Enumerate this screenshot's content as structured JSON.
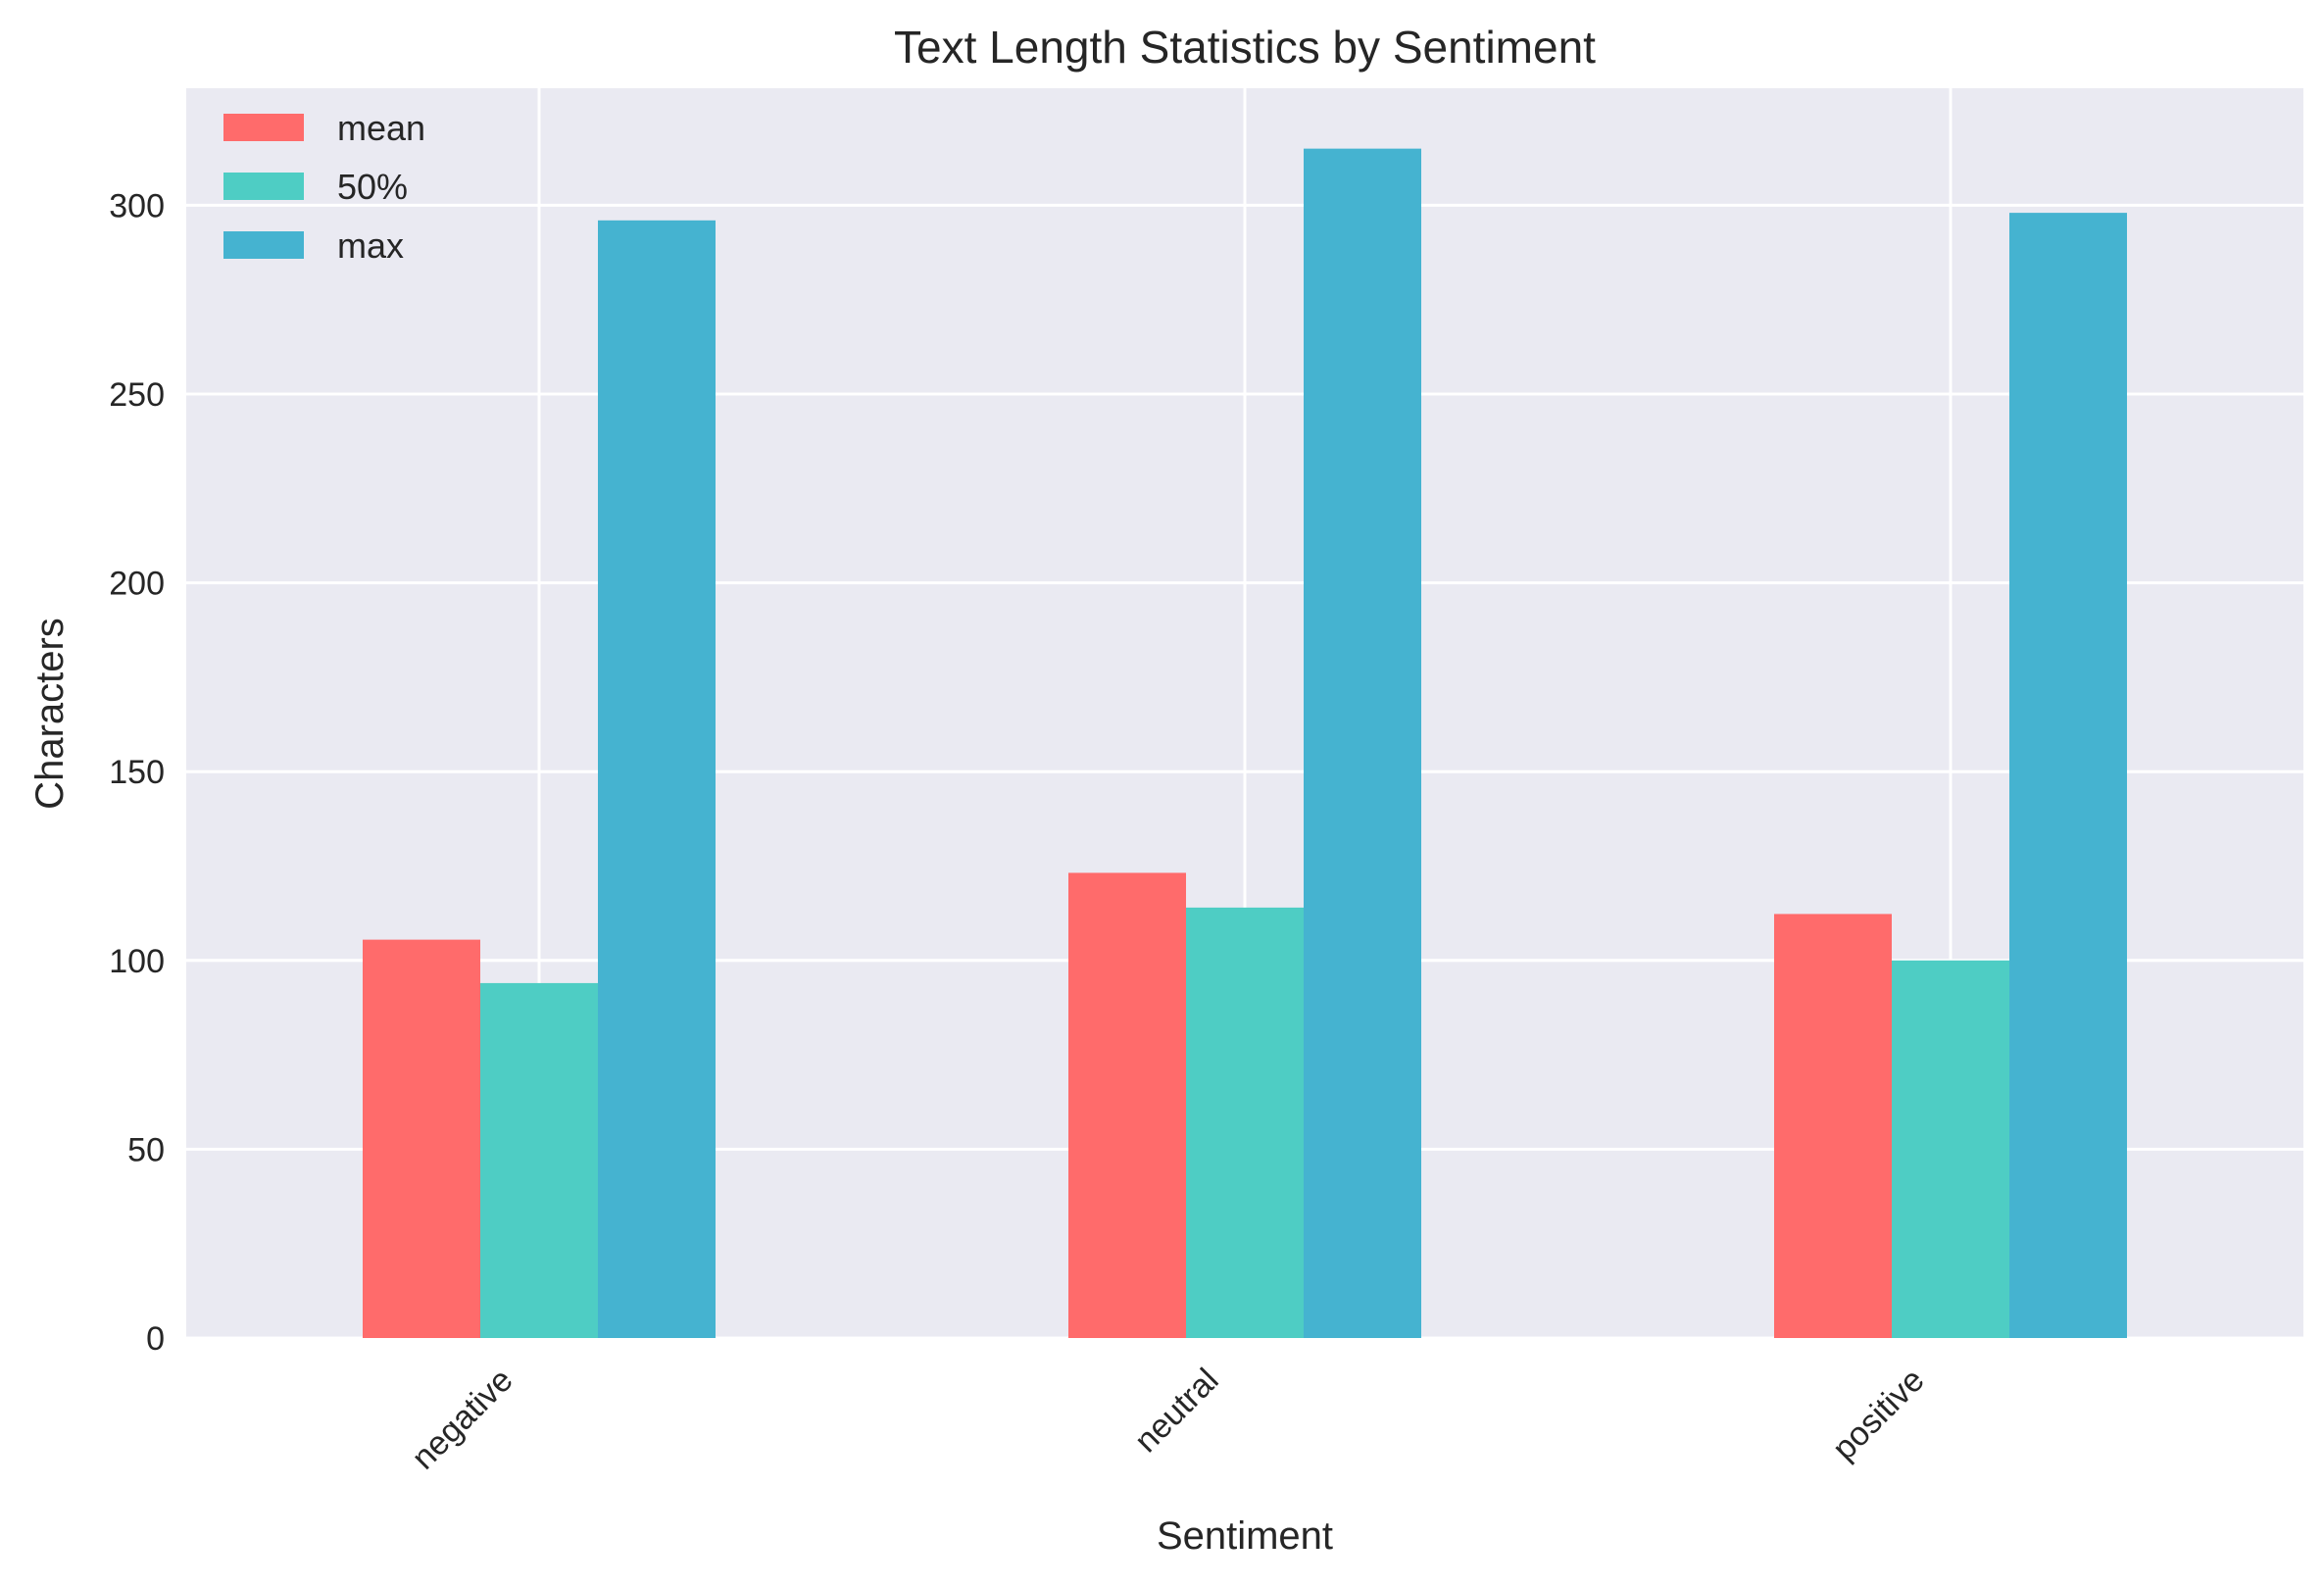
{
  "chart_data": {
    "type": "bar",
    "title": "Text Length Statistics by Sentiment",
    "xlabel": "Sentiment",
    "ylabel": "Characters",
    "categories": [
      "negative",
      "neutral",
      "positive"
    ],
    "series": [
      {
        "name": "mean",
        "color": "#ff6b6b",
        "values": [
          105.5,
          123.2,
          112.3
        ]
      },
      {
        "name": "50%",
        "color": "#4ecdc4",
        "values": [
          94,
          114,
          100
        ]
      },
      {
        "name": "max",
        "color": "#45b3d0",
        "values": [
          296,
          315,
          298
        ]
      }
    ],
    "ylim": [
      0,
      331
    ],
    "yticks": [
      0,
      50,
      100,
      150,
      200,
      250,
      300
    ],
    "grid": true,
    "legend": "top-left",
    "background": "#eaeaf2",
    "x_tick_rotation": -45
  }
}
